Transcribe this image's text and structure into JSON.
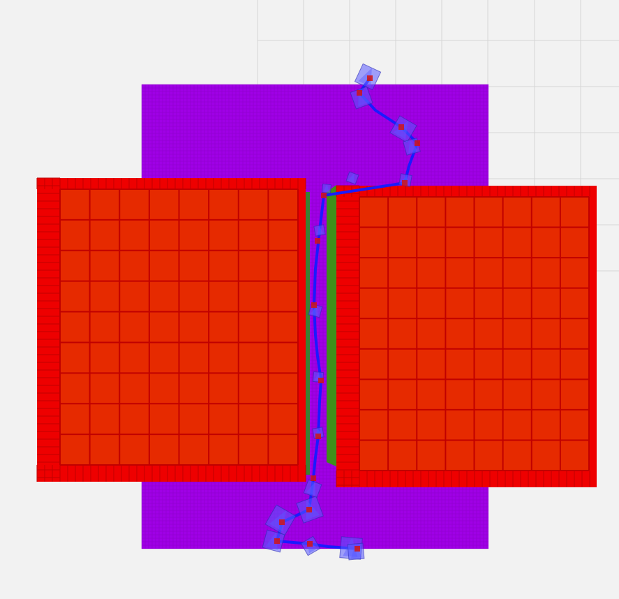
{
  "scene": {
    "colors": {
      "background": "#f2f2f2",
      "grid_line": "#d6d6d6",
      "costmap_fill": "#a000e6",
      "costmap_grid": "#7a00b0",
      "obstacle_fill": "#e62a00",
      "obstacle_edge": "#c00000",
      "obstacle_border": "#ee0000",
      "inflation_fill": "#3f8f1a",
      "path_line": "#1a1aff",
      "pose_fill": "#5a5aff",
      "pose_edge": "#2a2ab0",
      "waypoint": "#d21414"
    },
    "icons": {
      "pose_marker": "pose-arrow-square-icon",
      "waypoint_marker": "waypoint-square-icon"
    }
  }
}
